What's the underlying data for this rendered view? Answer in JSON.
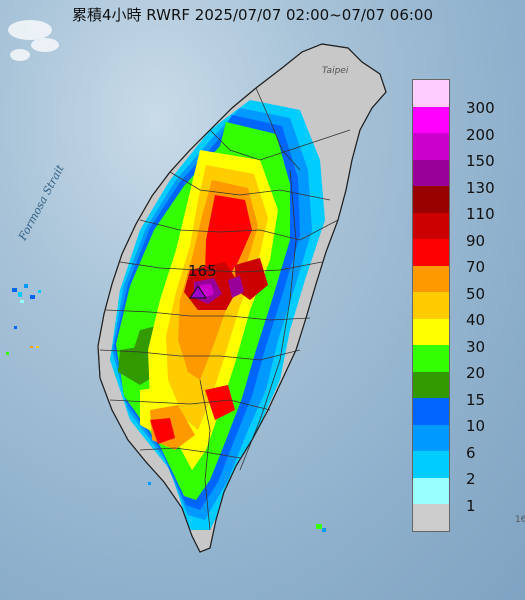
{
  "title": "累積4小時 RWRF 2025/07/07 02:00~07/07 06:00",
  "strait_label": "Formosa Strait",
  "city_label": "Taipei",
  "peak_value": "165",
  "corner_text": "16",
  "legend": {
    "levels": [
      {
        "label": "300",
        "color": "#ffccff"
      },
      {
        "label": "200",
        "color": "#ff00ff"
      },
      {
        "label": "150",
        "color": "#cc00cc"
      },
      {
        "label": "130",
        "color": "#990099"
      },
      {
        "label": "110",
        "color": "#990000"
      },
      {
        "label": "90",
        "color": "#cc0000"
      },
      {
        "label": "70",
        "color": "#ff0000"
      },
      {
        "label": "50",
        "color": "#ff9900"
      },
      {
        "label": "40",
        "color": "#ffcc00"
      },
      {
        "label": "30",
        "color": "#ffff00"
      },
      {
        "label": "20",
        "color": "#33ff00"
      },
      {
        "label": "15",
        "color": "#339900"
      },
      {
        "label": "10",
        "color": "#0066ff"
      },
      {
        "label": "6",
        "color": "#0099ff"
      },
      {
        "label": "2",
        "color": "#00ccff"
      },
      {
        "label": "1",
        "color": "#99ffff"
      },
      {
        "label": "",
        "color": "#cccccc"
      }
    ]
  }
}
